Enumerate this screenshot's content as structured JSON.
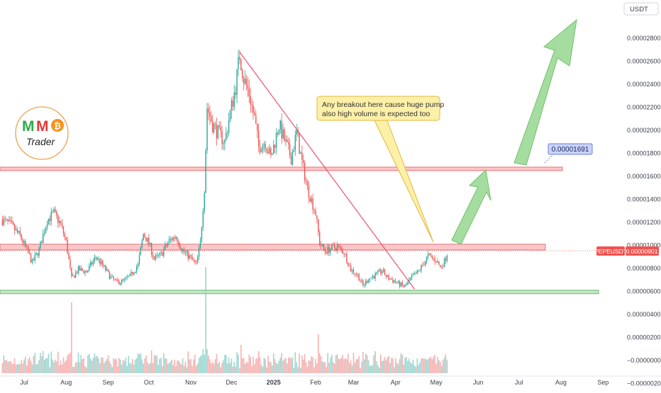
{
  "currency_label": "USDT",
  "colors": {
    "up": "#26a69a",
    "down": "#ef5350",
    "resistance_zone": "#f8b4b8",
    "support_zone": "#b2dfb5",
    "trendline": "#f0506e",
    "arrow": "#8fd48a",
    "callout_bg": "#fdf0a8",
    "price_tag_bg": "#c9d3f9"
  },
  "logo": {
    "letters": [
      "M",
      "M"
    ],
    "coin_symbol": "₿",
    "name": "Trader"
  },
  "annotations": {
    "callout_line1": "Any breakout here cause huge pump",
    "callout_line2": "also high volume is expected too",
    "target_price": "0.00001691"
  },
  "chart_data": {
    "type": "candlestick",
    "symbol": "PEPEUSDT",
    "last_price": "0.00000901",
    "y_ticks": [
      "0.00002800",
      "0.00002600",
      "0.00002400",
      "0.00002200",
      "0.00002000",
      "0.00001800",
      "0.00001600",
      "0.00001400",
      "0.00001200",
      "0.00001000",
      "0.00000800",
      "0.00000600",
      "0.00000400",
      "0.00000200",
      "−0.00000000",
      "−0.00000200"
    ],
    "y_tick_values": [
      2.8e-05,
      2.6e-05,
      2.4e-05,
      2.2e-05,
      2e-05,
      1.8e-05,
      1.6e-05,
      1.4e-05,
      1.2e-05,
      1e-05,
      8e-06,
      6e-06,
      4e-06,
      2e-06,
      0,
      -2e-06
    ],
    "x_ticks": [
      "Jul",
      "Aug",
      "Sep",
      "Oct",
      "Nov",
      "Dec",
      "2025",
      "Feb",
      "Mar",
      "Apr",
      "May",
      "Jun",
      "Jul",
      "Aug",
      "Sep"
    ],
    "x_tick_dates": [
      "2024-07-01",
      "2024-08-01",
      "2024-09-01",
      "2024-10-01",
      "2024-11-01",
      "2024-12-01",
      "2025-01-01",
      "2025-02-01",
      "2025-03-01",
      "2025-04-01",
      "2025-05-01",
      "2025-06-01",
      "2025-07-01",
      "2025-08-01",
      "2025-09-01"
    ],
    "price_path": [
      [
        "2024-06-15",
        1.22e-05
      ],
      [
        "2024-06-21",
        1.18e-05
      ],
      [
        "2024-06-28",
        1.08e-05
      ],
      [
        "2024-07-03",
        9.6e-06
      ],
      [
        "2024-07-07",
        8.5e-06
      ],
      [
        "2024-07-12",
        9.6e-06
      ],
      [
        "2024-07-18",
        1.22e-05
      ],
      [
        "2024-07-23",
        1.28e-05
      ],
      [
        "2024-07-28",
        1.18e-05
      ],
      [
        "2024-08-01",
        1.03e-05
      ],
      [
        "2024-08-05",
        7.1e-06
      ],
      [
        "2024-08-10",
        7.9e-06
      ],
      [
        "2024-08-16",
        7.7e-06
      ],
      [
        "2024-08-23",
        9e-06
      ],
      [
        "2024-08-27",
        8.4e-06
      ],
      [
        "2024-09-03",
        7.2e-06
      ],
      [
        "2024-09-07",
        6.8e-06
      ],
      [
        "2024-09-12",
        6.9e-06
      ],
      [
        "2024-09-17",
        7.3e-06
      ],
      [
        "2024-09-23",
        8.3e-06
      ],
      [
        "2024-09-27",
        1.1e-05
      ],
      [
        "2024-10-01",
        1.02e-05
      ],
      [
        "2024-10-05",
        8.8e-06
      ],
      [
        "2024-10-10",
        9.2e-06
      ],
      [
        "2024-10-16",
        1.04e-05
      ],
      [
        "2024-10-21",
        1.08e-05
      ],
      [
        "2024-10-26",
        9.5e-06
      ],
      [
        "2024-10-31",
        9e-06
      ],
      [
        "2024-11-05",
        8.3e-06
      ],
      [
        "2024-11-08",
        1.02e-05
      ],
      [
        "2024-11-11",
        1.5e-05
      ],
      [
        "2024-11-13",
        2.2e-05
      ],
      [
        "2024-11-17",
        2.05e-05
      ],
      [
        "2024-11-21",
        1.98e-05
      ],
      [
        "2024-11-26",
        1.9e-05
      ],
      [
        "2024-11-30",
        2.15e-05
      ],
      [
        "2024-12-04",
        2.38e-05
      ],
      [
        "2024-12-07",
        2.66e-05
      ],
      [
        "2024-12-10",
        2.45e-05
      ],
      [
        "2024-12-14",
        2.32e-05
      ],
      [
        "2024-12-18",
        2.1e-05
      ],
      [
        "2024-12-21",
        1.86e-05
      ],
      [
        "2024-12-26",
        1.9e-05
      ],
      [
        "2024-12-30",
        1.76e-05
      ],
      [
        "2025-01-05",
        2.05e-05
      ],
      [
        "2025-01-10",
        1.88e-05
      ],
      [
        "2025-01-14",
        1.76e-05
      ],
      [
        "2025-01-18",
        1.98e-05
      ],
      [
        "2025-01-22",
        1.72e-05
      ],
      [
        "2025-01-26",
        1.5e-05
      ],
      [
        "2025-02-01",
        1.28e-05
      ],
      [
        "2025-02-04",
        1.02e-05
      ],
      [
        "2025-02-08",
        9.5e-06
      ],
      [
        "2025-02-12",
        9.7e-06
      ],
      [
        "2025-02-17",
        9.9e-06
      ],
      [
        "2025-02-22",
        9.4e-06
      ],
      [
        "2025-02-27",
        7.9e-06
      ],
      [
        "2025-03-04",
        7.4e-06
      ],
      [
        "2025-03-08",
        6.5e-06
      ],
      [
        "2025-03-12",
        7.1e-06
      ],
      [
        "2025-03-17",
        7.4e-06
      ],
      [
        "2025-03-22",
        7.8e-06
      ],
      [
        "2025-03-26",
        7.2e-06
      ],
      [
        "2025-03-31",
        6.9e-06
      ],
      [
        "2025-04-04",
        6.6e-06
      ],
      [
        "2025-04-08",
        6.4e-06
      ],
      [
        "2025-04-13",
        7.2e-06
      ],
      [
        "2025-04-17",
        7.6e-06
      ],
      [
        "2025-04-21",
        8.3e-06
      ],
      [
        "2025-04-25",
        9.1e-06
      ],
      [
        "2025-04-28",
        8.9e-06
      ],
      [
        "2025-05-01",
        8.7e-06
      ],
      [
        "2025-05-04",
        8.1e-06
      ],
      [
        "2025-05-07",
        8.6e-06
      ],
      [
        "2025-05-09",
        9.3e-06
      ]
    ],
    "volume_spikes": [
      [
        "2024-08-05",
        100
      ],
      [
        "2024-11-12",
        150
      ],
      [
        "2024-12-08",
        40
      ],
      [
        "2025-02-03",
        55
      ],
      [
        "2025-03-08",
        30
      ]
    ],
    "resistance_zone": [
      9.6e-06,
      1.01e-05
    ],
    "support_zone": [
      5.8e-06,
      6.1e-06
    ],
    "breakout_zone": [
      1.65e-05,
      1.68e-05
    ],
    "trendline": [
      [
        "2024-12-07",
        2.68e-05
      ],
      [
        "2025-04-15",
        6.2e-06
      ]
    ],
    "y_axis_position": "right",
    "grid": false
  }
}
